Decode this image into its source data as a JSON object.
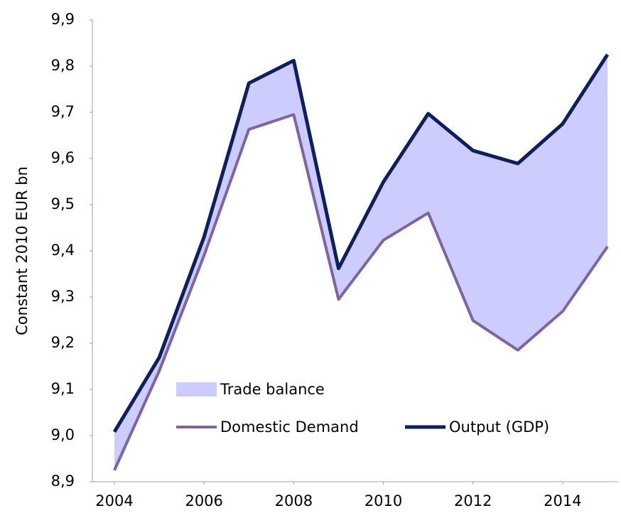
{
  "chart_data": {
    "type": "line",
    "y_label": "Constant 2010 EUR bn",
    "x": [
      2004,
      2005,
      2006,
      2007,
      2008,
      2009,
      2010,
      2011,
      2012,
      2013,
      2014,
      2015
    ],
    "xlim": [
      2004,
      2015
    ],
    "xticks": [
      2004,
      2006,
      2008,
      2010,
      2012,
      2014
    ],
    "ylim": [
      8.9,
      9.9
    ],
    "yticks": [
      {
        "value": 8.9,
        "label": "8,9"
      },
      {
        "value": 9.0,
        "label": "9,0"
      },
      {
        "value": 9.1,
        "label": "9,1"
      },
      {
        "value": 9.2,
        "label": "9,2"
      },
      {
        "value": 9.3,
        "label": "9,3"
      },
      {
        "value": 9.4,
        "label": "9,4"
      },
      {
        "value": 9.5,
        "label": "9,5"
      },
      {
        "value": 9.6,
        "label": "9,6"
      },
      {
        "value": 9.7,
        "label": "9,7"
      },
      {
        "value": 9.8,
        "label": "9,8"
      },
      {
        "value": 9.9,
        "label": "9,9"
      }
    ],
    "grid": false,
    "fill_between": {
      "name": "Trade balance",
      "color": "#ccccff"
    },
    "series": [
      {
        "name": "Domestic Demand",
        "color": "#8064a2",
        "values": [
          8.925,
          9.14,
          9.39,
          9.663,
          9.695,
          9.295,
          9.423,
          9.482,
          9.249,
          9.185,
          9.269,
          9.409
        ]
      },
      {
        "name": "Output (GDP)",
        "color": "#0d1f5c",
        "values": [
          9.008,
          9.169,
          9.43,
          9.763,
          9.812,
          9.362,
          9.549,
          9.697,
          9.617,
          9.589,
          9.675,
          9.825
        ]
      }
    ]
  }
}
